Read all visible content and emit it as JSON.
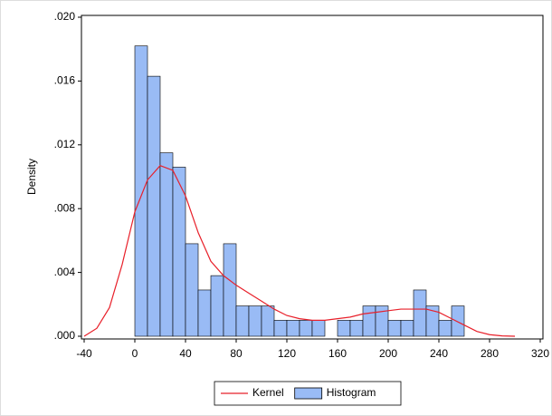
{
  "chart_data": {
    "type": "histogram",
    "y_label": "Density",
    "xlim": [
      -40,
      320
    ],
    "xticks": [
      -40,
      0,
      40,
      80,
      120,
      160,
      200,
      240,
      280,
      320
    ],
    "ylim": [
      0,
      0.02
    ],
    "yticks": [
      {
        "value": 0,
        "label": ".000"
      },
      {
        "value": 0.004,
        "label": ".004"
      },
      {
        "value": 0.008,
        "label": ".008"
      },
      {
        "value": 0.012,
        "label": ".012"
      },
      {
        "value": 0.016,
        "label": ".016"
      },
      {
        "value": 0.02,
        "label": ".020"
      }
    ],
    "grid": false,
    "legend": "bottom",
    "series": [
      {
        "name": "Kernel",
        "type": "line",
        "color": "#e8202a",
        "x": [
          -40,
          -30,
          -20,
          -10,
          0,
          10,
          20,
          30,
          40,
          50,
          60,
          70,
          80,
          90,
          100,
          110,
          120,
          130,
          140,
          150,
          160,
          170,
          180,
          190,
          200,
          210,
          220,
          230,
          240,
          250,
          260,
          270,
          280,
          290,
          300
        ],
        "values": [
          0,
          0.0005,
          0.0018,
          0.0045,
          0.0078,
          0.0098,
          0.0107,
          0.0104,
          0.0088,
          0.0065,
          0.0047,
          0.0038,
          0.0032,
          0.0027,
          0.0022,
          0.0017,
          0.0013,
          0.0011,
          0.001,
          0.001,
          0.0011,
          0.0012,
          0.0014,
          0.0015,
          0.0016,
          0.0017,
          0.0017,
          0.0017,
          0.0015,
          0.0011,
          0.0007,
          0.0003,
          0.0001,
          2e-05,
          0
        ]
      },
      {
        "name": "Histogram",
        "type": "bar",
        "color": "#99bbf5",
        "bins": [
          0,
          10,
          20,
          30,
          40,
          50,
          60,
          70,
          80,
          90,
          100,
          110,
          120,
          130,
          140,
          150,
          160,
          170,
          180,
          190,
          200,
          210,
          220,
          230,
          240,
          250,
          260
        ],
        "values": [
          0.0182,
          0.0163,
          0.0115,
          0.0106,
          0.0058,
          0.0029,
          0.0038,
          0.0058,
          0.0019,
          0.0019,
          0.0019,
          0.001,
          0.001,
          0.001,
          0.001,
          0,
          0.001,
          0.001,
          0.0019,
          0.0019,
          0.001,
          0.001,
          0.0029,
          0.0019,
          0.001,
          0.0019
        ]
      }
    ]
  }
}
